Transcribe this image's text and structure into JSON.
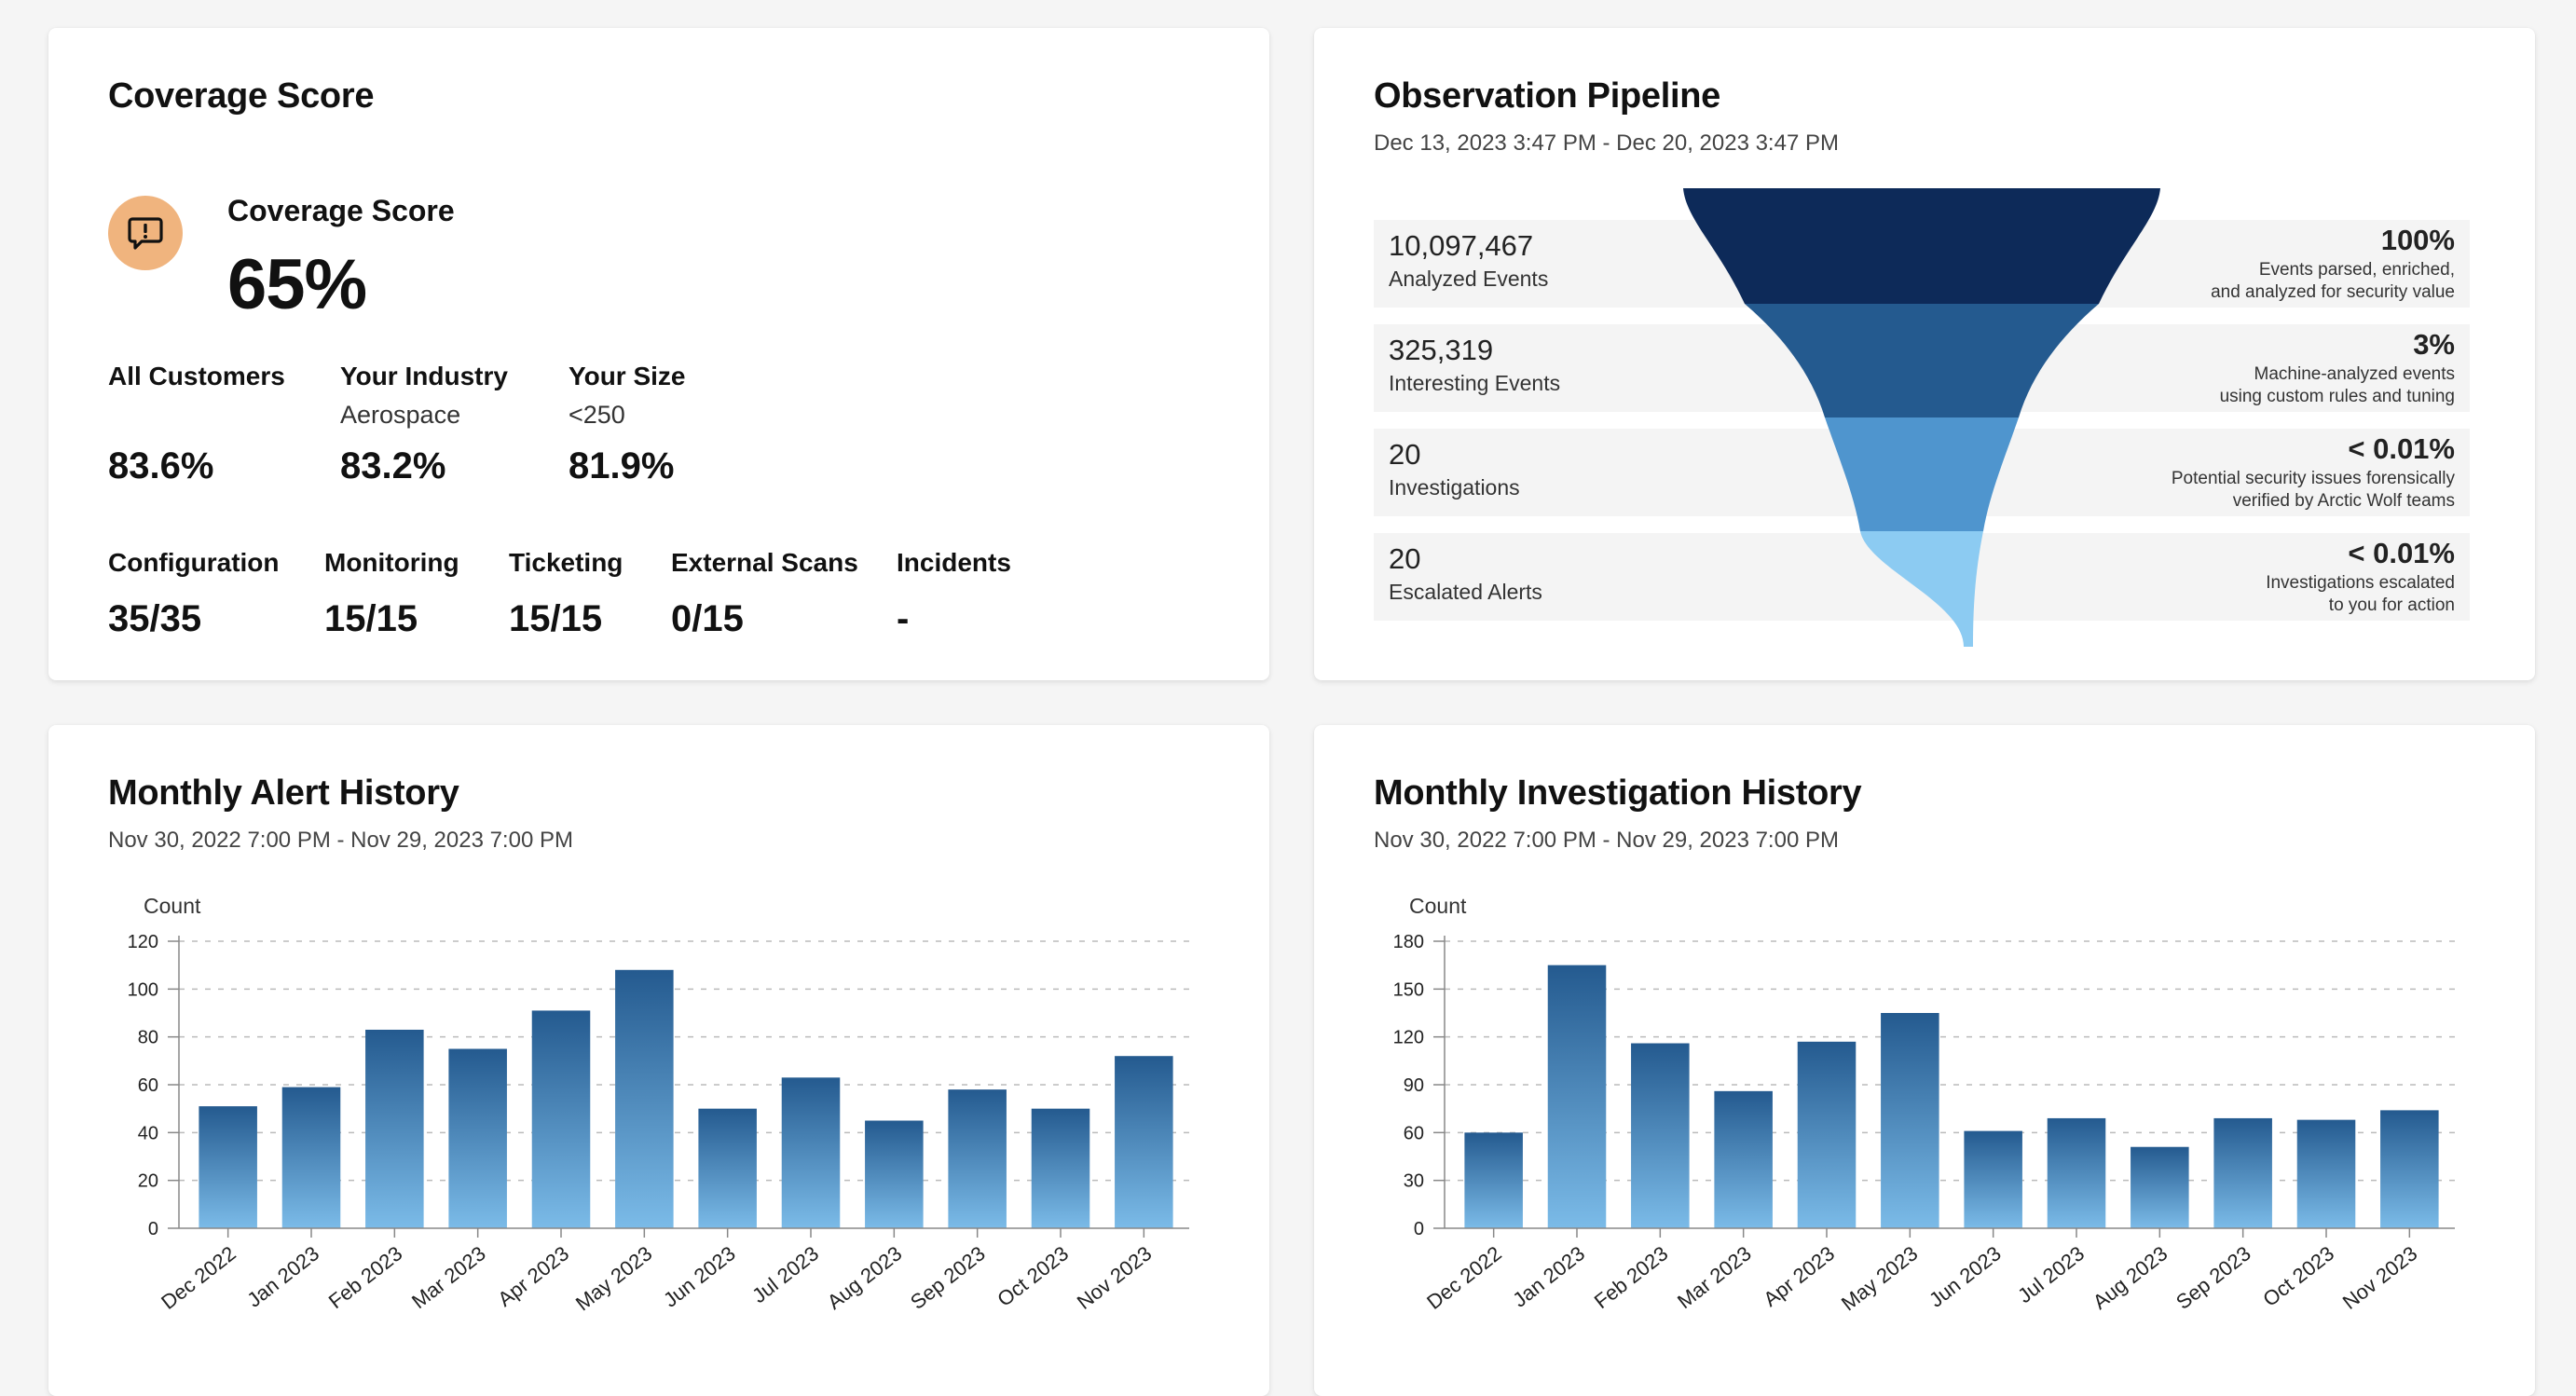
{
  "coverage": {
    "title": "Coverage Score",
    "score_label": "Coverage Score",
    "score_value": "65%",
    "icon": "alert-message-icon",
    "icon_color": "#f0b47e",
    "comparisons": [
      {
        "label": "All Customers",
        "sub": "",
        "value": "83.6%"
      },
      {
        "label": "Your Industry",
        "sub": "Aerospace",
        "value": "83.2%"
      },
      {
        "label": "Your Size",
        "sub": "<250",
        "value": "81.9%"
      }
    ],
    "metrics": [
      {
        "label": "Configuration",
        "value": "35/35"
      },
      {
        "label": "Monitoring",
        "value": "15/15"
      },
      {
        "label": "Ticketing",
        "value": "15/15"
      },
      {
        "label": "External Scans",
        "value": "0/15"
      },
      {
        "label": "Incidents",
        "value": "-"
      }
    ]
  },
  "pipeline": {
    "title": "Observation Pipeline",
    "range": "Dec 13, 2023 3:47 PM - Dec 20, 2023 3:47 PM",
    "stages": [
      {
        "count": "10,097,467",
        "label": "Analyzed Events",
        "percent": "100%",
        "desc": [
          "Events parsed, enriched,",
          "and analyzed for security value"
        ],
        "color": "#0d2a59"
      },
      {
        "count": "325,319",
        "label": "Interesting Events",
        "percent": "3%",
        "desc": [
          "Machine-analyzed events",
          "using custom rules and tuning"
        ],
        "color": "#245a8f"
      },
      {
        "count": "20",
        "label": "Investigations",
        "percent": "< 0.01%",
        "desc": [
          "Potential security issues forensically",
          "verified by Arctic Wolf teams"
        ],
        "color": "#4f95ce"
      },
      {
        "count": "20",
        "label": "Escalated Alerts",
        "percent": "< 0.01%",
        "desc": [
          "Investigations escalated",
          "to you for action"
        ],
        "color": "#8ccbf2"
      }
    ]
  },
  "alerts": {
    "title": "Monthly Alert History",
    "range": "Nov 30, 2022 7:00 PM - Nov 29, 2023 7:00 PM",
    "chart_data": {
      "type": "bar",
      "ylabel": "Count",
      "categories": [
        "Dec 2022",
        "Jan 2023",
        "Feb 2023",
        "Mar 2023",
        "Apr 2023",
        "May 2023",
        "Jun 2023",
        "Jul 2023",
        "Aug 2023",
        "Sep 2023",
        "Oct 2023",
        "Nov 2023"
      ],
      "values": [
        51,
        59,
        83,
        75,
        91,
        108,
        50,
        63,
        45,
        58,
        50,
        72
      ],
      "ylim": [
        0,
        120
      ],
      "yticks": [
        0,
        20,
        40,
        60,
        80,
        100,
        120
      ],
      "grid": true,
      "bar_color_top": "#245a8f",
      "bar_color_bottom": "#7bbbe8"
    }
  },
  "investigations": {
    "title": "Monthly Investigation History",
    "range": "Nov 30, 2022 7:00 PM - Nov 29, 2023 7:00 PM",
    "chart_data": {
      "type": "bar",
      "ylabel": "Count",
      "categories": [
        "Dec 2022",
        "Jan 2023",
        "Feb 2023",
        "Mar 2023",
        "Apr 2023",
        "May 2023",
        "Jun 2023",
        "Jul 2023",
        "Aug 2023",
        "Sep 2023",
        "Oct 2023",
        "Nov 2023"
      ],
      "values": [
        60,
        165,
        116,
        86,
        117,
        135,
        61,
        69,
        51,
        69,
        68,
        74
      ],
      "ylim": [
        0,
        180
      ],
      "yticks": [
        0,
        30,
        60,
        90,
        120,
        150,
        180
      ],
      "grid": true,
      "bar_color_top": "#245a8f",
      "bar_color_bottom": "#7bbbe8"
    }
  }
}
